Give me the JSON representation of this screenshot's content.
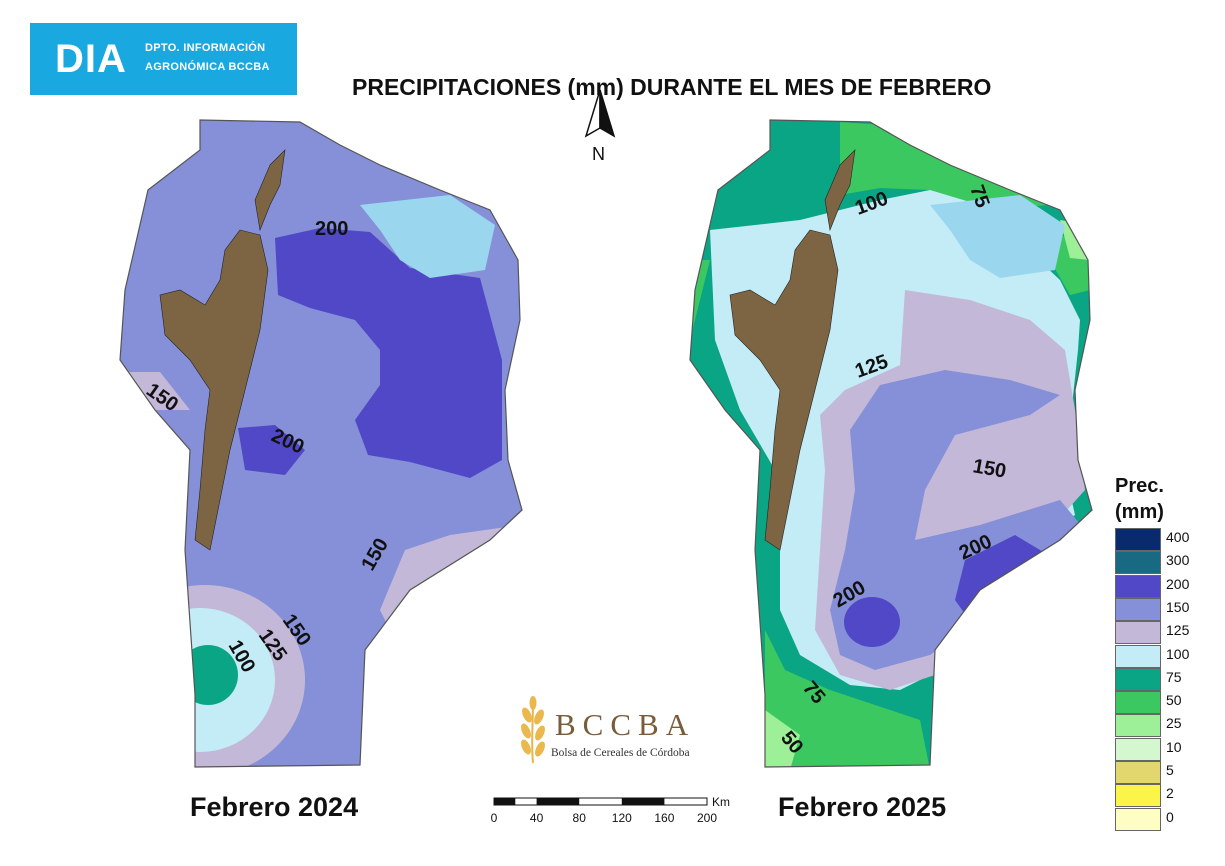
{
  "logo": {
    "main": "DIA",
    "line1": "DPTO. INFORMACIÓN",
    "line2": "AGRONÓMICA BCCBA"
  },
  "title": "PRECIPITACIONES (mm) DURANTE EL MES DE FEBRERO",
  "north_label": "N",
  "maps": [
    {
      "label": "Febrero 2024",
      "contour_labels": [
        "200",
        "150",
        "200",
        "150",
        "150",
        "125",
        "100"
      ]
    },
    {
      "label": "Febrero 2025",
      "contour_labels": [
        "100",
        "75",
        "125",
        "150",
        "200",
        "200",
        "75",
        "50"
      ]
    }
  ],
  "org": {
    "name": "BCCBA",
    "full_name": "Bolsa de Cereales de Córdoba"
  },
  "scale": {
    "unit": "Km",
    "ticks": [
      "0",
      "40",
      "80",
      "120",
      "160",
      "200"
    ]
  },
  "legend": {
    "title_line1": "Prec.",
    "title_line2": "(mm)",
    "classes": [
      {
        "label": "400",
        "color": "#0a2a6e"
      },
      {
        "label": "300",
        "color": "#176a82"
      },
      {
        "label": "200",
        "color": "#5048c6"
      },
      {
        "label": "150",
        "color": "#8590d8"
      },
      {
        "label": "125",
        "color": "#c4b8d8"
      },
      {
        "label": "100",
        "color": "#c4ecf6"
      },
      {
        "label": "75",
        "color": "#0aa584"
      },
      {
        "label": "50",
        "color": "#3cc860"
      },
      {
        "label": "25",
        "color": "#9ef098"
      },
      {
        "label": "10",
        "color": "#d4f7cf"
      },
      {
        "label": "5",
        "color": "#e2d66e"
      },
      {
        "label": "2",
        "color": "#fbf54a"
      },
      {
        "label": "0",
        "color": "#fdfdc4"
      }
    ]
  }
}
